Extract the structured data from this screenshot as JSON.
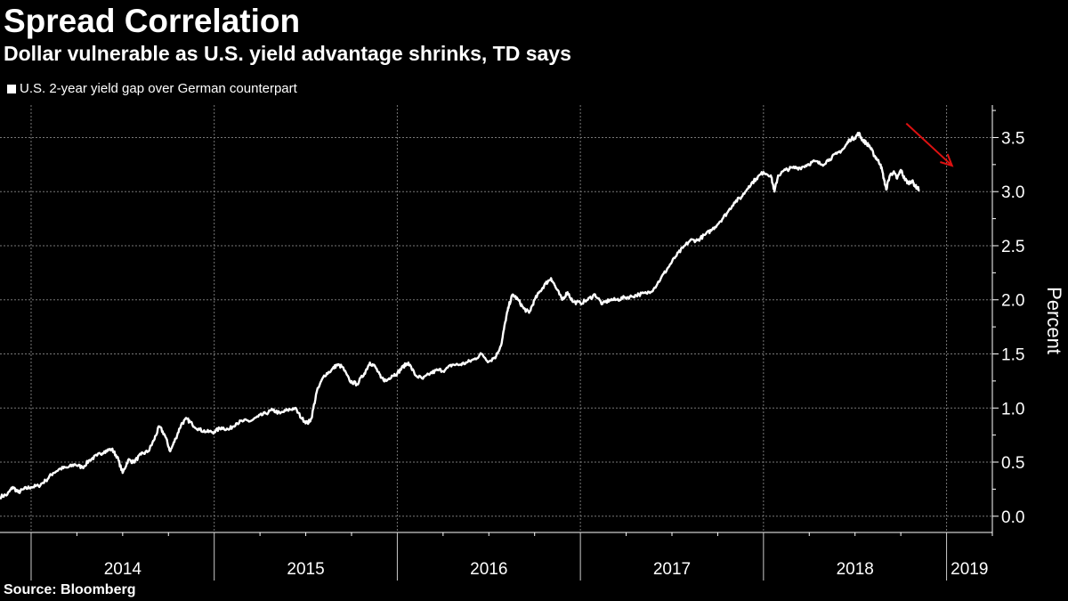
{
  "chart_data": {
    "type": "line",
    "title": "Spread Correlation",
    "subtitle": "Dollar vulnerable as U.S. yield advantage shrinks, TD says",
    "source": "Source: Bloomberg",
    "xlabel": "",
    "ylabel": "Percent",
    "ylim": [
      0,
      3.8
    ],
    "yticks": [
      0.0,
      0.5,
      1.0,
      1.5,
      2.0,
      2.5,
      3.0,
      3.5
    ],
    "ytick_labels": [
      "0.0",
      "0.5",
      "1.0",
      "1.5",
      "2.0",
      "2.5",
      "3.0",
      "3.5"
    ],
    "xlim": [
      2013.83,
      2019.25
    ],
    "year_labels": [
      "2014",
      "2015",
      "2016",
      "2017",
      "2018",
      "2019"
    ],
    "grid": true,
    "legend_position": "top-left",
    "series": [
      {
        "name": "U.S. 2-year yield gap over German counterpart",
        "color": "#ffffff",
        "points": [
          [
            2013.83,
            0.18
          ],
          [
            2013.87,
            0.2
          ],
          [
            2013.9,
            0.27
          ],
          [
            2013.93,
            0.22
          ],
          [
            2013.96,
            0.25
          ],
          [
            2014.0,
            0.27
          ],
          [
            2014.04,
            0.28
          ],
          [
            2014.08,
            0.33
          ],
          [
            2014.12,
            0.4
          ],
          [
            2014.16,
            0.44
          ],
          [
            2014.2,
            0.45
          ],
          [
            2014.24,
            0.48
          ],
          [
            2014.28,
            0.45
          ],
          [
            2014.32,
            0.52
          ],
          [
            2014.36,
            0.56
          ],
          [
            2014.4,
            0.6
          ],
          [
            2014.44,
            0.62
          ],
          [
            2014.47,
            0.55
          ],
          [
            2014.5,
            0.4
          ],
          [
            2014.53,
            0.52
          ],
          [
            2014.56,
            0.5
          ],
          [
            2014.6,
            0.57
          ],
          [
            2014.64,
            0.6
          ],
          [
            2014.67,
            0.7
          ],
          [
            2014.7,
            0.83
          ],
          [
            2014.73,
            0.75
          ],
          [
            2014.76,
            0.6
          ],
          [
            2014.79,
            0.72
          ],
          [
            2014.82,
            0.85
          ],
          [
            2014.85,
            0.9
          ],
          [
            2014.88,
            0.85
          ],
          [
            2014.92,
            0.8
          ],
          [
            2014.96,
            0.78
          ],
          [
            2015.0,
            0.78
          ],
          [
            2015.04,
            0.82
          ],
          [
            2015.08,
            0.8
          ],
          [
            2015.12,
            0.86
          ],
          [
            2015.16,
            0.88
          ],
          [
            2015.2,
            0.88
          ],
          [
            2015.24,
            0.92
          ],
          [
            2015.28,
            0.95
          ],
          [
            2015.32,
            0.98
          ],
          [
            2015.36,
            0.95
          ],
          [
            2015.4,
            0.98
          ],
          [
            2015.44,
            1.0
          ],
          [
            2015.48,
            0.9
          ],
          [
            2015.51,
            0.86
          ],
          [
            2015.53,
            0.9
          ],
          [
            2015.56,
            1.15
          ],
          [
            2015.6,
            1.3
          ],
          [
            2015.64,
            1.35
          ],
          [
            2015.67,
            1.4
          ],
          [
            2015.7,
            1.38
          ],
          [
            2015.74,
            1.25
          ],
          [
            2015.78,
            1.22
          ],
          [
            2015.82,
            1.32
          ],
          [
            2015.85,
            1.42
          ],
          [
            2015.88,
            1.38
          ],
          [
            2015.91,
            1.28
          ],
          [
            2015.94,
            1.25
          ],
          [
            2015.97,
            1.3
          ],
          [
            2016.0,
            1.32
          ],
          [
            2016.03,
            1.38
          ],
          [
            2016.06,
            1.42
          ],
          [
            2016.1,
            1.3
          ],
          [
            2016.14,
            1.27
          ],
          [
            2016.18,
            1.32
          ],
          [
            2016.22,
            1.35
          ],
          [
            2016.26,
            1.35
          ],
          [
            2016.3,
            1.4
          ],
          [
            2016.34,
            1.4
          ],
          [
            2016.38,
            1.42
          ],
          [
            2016.42,
            1.45
          ],
          [
            2016.46,
            1.5
          ],
          [
            2016.5,
            1.43
          ],
          [
            2016.54,
            1.48
          ],
          [
            2016.57,
            1.6
          ],
          [
            2016.59,
            1.8
          ],
          [
            2016.61,
            1.95
          ],
          [
            2016.63,
            2.05
          ],
          [
            2016.66,
            2.0
          ],
          [
            2016.69,
            1.92
          ],
          [
            2016.72,
            1.88
          ],
          [
            2016.75,
            2.0
          ],
          [
            2016.78,
            2.08
          ],
          [
            2016.81,
            2.15
          ],
          [
            2016.84,
            2.2
          ],
          [
            2016.87,
            2.1
          ],
          [
            2016.9,
            2.0
          ],
          [
            2016.93,
            2.07
          ],
          [
            2016.96,
            1.98
          ],
          [
            2017.0,
            1.97
          ],
          [
            2017.04,
            2.0
          ],
          [
            2017.08,
            2.05
          ],
          [
            2017.12,
            1.96
          ],
          [
            2017.16,
            2.0
          ],
          [
            2017.2,
            2.0
          ],
          [
            2017.24,
            2.02
          ],
          [
            2017.28,
            2.03
          ],
          [
            2017.32,
            2.05
          ],
          [
            2017.36,
            2.06
          ],
          [
            2017.4,
            2.1
          ],
          [
            2017.44,
            2.2
          ],
          [
            2017.48,
            2.3
          ],
          [
            2017.52,
            2.4
          ],
          [
            2017.56,
            2.48
          ],
          [
            2017.6,
            2.55
          ],
          [
            2017.64,
            2.55
          ],
          [
            2017.68,
            2.6
          ],
          [
            2017.72,
            2.65
          ],
          [
            2017.76,
            2.72
          ],
          [
            2017.8,
            2.8
          ],
          [
            2017.84,
            2.9
          ],
          [
            2017.88,
            2.95
          ],
          [
            2017.92,
            3.05
          ],
          [
            2017.96,
            3.12
          ],
          [
            2018.0,
            3.18
          ],
          [
            2018.04,
            3.15
          ],
          [
            2018.06,
            3.0
          ],
          [
            2018.08,
            3.15
          ],
          [
            2018.12,
            3.2
          ],
          [
            2018.16,
            3.22
          ],
          [
            2018.2,
            3.22
          ],
          [
            2018.24,
            3.25
          ],
          [
            2018.28,
            3.28
          ],
          [
            2018.32,
            3.25
          ],
          [
            2018.36,
            3.3
          ],
          [
            2018.4,
            3.35
          ],
          [
            2018.44,
            3.4
          ],
          [
            2018.47,
            3.48
          ],
          [
            2018.5,
            3.5
          ],
          [
            2018.52,
            3.54
          ],
          [
            2018.54,
            3.48
          ],
          [
            2018.56,
            3.45
          ],
          [
            2018.58,
            3.42
          ],
          [
            2018.6,
            3.35
          ],
          [
            2018.62,
            3.3
          ],
          [
            2018.64,
            3.25
          ],
          [
            2018.66,
            3.1
          ],
          [
            2018.67,
            3.02
          ],
          [
            2018.69,
            3.15
          ],
          [
            2018.71,
            3.18
          ],
          [
            2018.73,
            3.12
          ],
          [
            2018.75,
            3.2
          ],
          [
            2018.77,
            3.12
          ],
          [
            2018.79,
            3.08
          ],
          [
            2018.81,
            3.1
          ],
          [
            2018.83,
            3.05
          ],
          [
            2018.85,
            3.02
          ]
        ]
      }
    ],
    "annotation": {
      "type": "arrow",
      "color": "#dd1111",
      "from": [
        2018.78,
        3.63
      ],
      "to": [
        2019.03,
        3.24
      ]
    }
  }
}
